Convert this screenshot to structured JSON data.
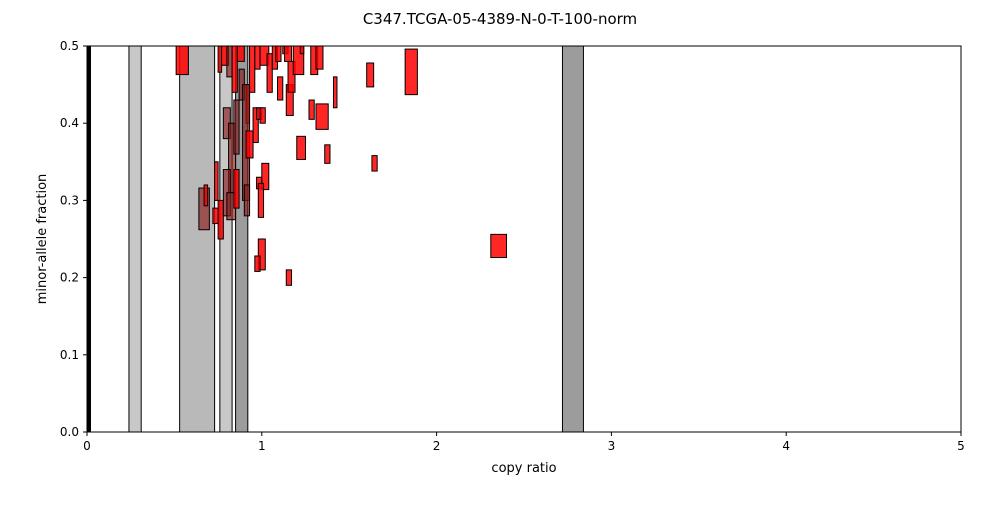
{
  "chart_data": {
    "type": "scatter",
    "title": "C347.TCGA-05-4389-N-0-T-100-norm",
    "xlabel": "copy ratio",
    "ylabel": "minor-allele fraction",
    "xlim": [
      0,
      5
    ],
    "ylim": [
      0,
      0.5
    ],
    "xticks": [
      "0",
      "1",
      "2",
      "3",
      "4",
      "5"
    ],
    "yticks": [
      "0.0",
      "0.1",
      "0.2",
      "0.3",
      "0.4",
      "0.5"
    ],
    "grid": false,
    "colors": {
      "segment": "#ff0000",
      "segment_faded": "#8b1a1a",
      "band_light": "#c8c8c8",
      "band_mid": "#b9b9b9",
      "band_dark": "#9c9c9c",
      "edge": "#000000"
    },
    "bands": [
      {
        "x0": 0.0,
        "x1": 0.02,
        "shade": "black"
      },
      {
        "x0": 0.24,
        "x1": 0.31,
        "shade": "light"
      },
      {
        "x0": 0.53,
        "x1": 0.73,
        "shade": "mid"
      },
      {
        "x0": 0.76,
        "x1": 0.83,
        "shade": "light"
      },
      {
        "x0": 0.85,
        "x1": 0.92,
        "shade": "dark"
      },
      {
        "x0": 2.72,
        "x1": 2.84,
        "shade": "dark"
      }
    ],
    "segments": [
      {
        "x0": 0.51,
        "x1": 0.58,
        "y0": 0.463,
        "y1": 0.5,
        "faded": false
      },
      {
        "x0": 0.75,
        "x1": 0.77,
        "y0": 0.466,
        "y1": 0.5,
        "faded": false
      },
      {
        "x0": 0.77,
        "x1": 0.81,
        "y0": 0.475,
        "y1": 0.5,
        "faded": false
      },
      {
        "x0": 0.8,
        "x1": 0.83,
        "y0": 0.46,
        "y1": 0.5,
        "faded": true
      },
      {
        "x0": 0.83,
        "x1": 0.86,
        "y0": 0.44,
        "y1": 0.5,
        "faded": false
      },
      {
        "x0": 0.86,
        "x1": 0.9,
        "y0": 0.48,
        "y1": 0.5,
        "faded": false
      },
      {
        "x0": 0.87,
        "x1": 0.9,
        "y0": 0.43,
        "y1": 0.47,
        "faded": true
      },
      {
        "x0": 0.91,
        "x1": 0.93,
        "y0": 0.4,
        "y1": 0.45,
        "faded": false
      },
      {
        "x0": 0.93,
        "x1": 0.96,
        "y0": 0.44,
        "y1": 0.5,
        "faded": false
      },
      {
        "x0": 0.96,
        "x1": 0.99,
        "y0": 0.47,
        "y1": 0.5,
        "faded": false
      },
      {
        "x0": 0.99,
        "x1": 1.04,
        "y0": 0.475,
        "y1": 0.5,
        "faded": false
      },
      {
        "x0": 1.03,
        "x1": 1.06,
        "y0": 0.44,
        "y1": 0.49,
        "faded": false
      },
      {
        "x0": 1.06,
        "x1": 1.09,
        "y0": 0.47,
        "y1": 0.5,
        "faded": false
      },
      {
        "x0": 1.08,
        "x1": 1.11,
        "y0": 0.48,
        "y1": 0.5,
        "faded": false
      },
      {
        "x0": 1.09,
        "x1": 1.12,
        "y0": 0.43,
        "y1": 0.46,
        "faded": false
      },
      {
        "x0": 1.12,
        "x1": 1.15,
        "y0": 0.49,
        "y1": 0.5,
        "faded": false
      },
      {
        "x0": 1.13,
        "x1": 1.17,
        "y0": 0.48,
        "y1": 0.5,
        "faded": false
      },
      {
        "x0": 1.14,
        "x1": 1.18,
        "y0": 0.41,
        "y1": 0.45,
        "faded": false
      },
      {
        "x0": 1.15,
        "x1": 1.19,
        "y0": 0.44,
        "y1": 0.48,
        "faded": false
      },
      {
        "x0": 1.18,
        "x1": 1.24,
        "y0": 0.463,
        "y1": 0.5,
        "faded": false
      },
      {
        "x0": 1.22,
        "x1": 1.24,
        "y0": 0.49,
        "y1": 0.5,
        "faded": false
      },
      {
        "x0": 1.28,
        "x1": 1.32,
        "y0": 0.463,
        "y1": 0.5,
        "faded": false
      },
      {
        "x0": 1.31,
        "x1": 1.35,
        "y0": 0.47,
        "y1": 0.5,
        "faded": false
      },
      {
        "x0": 1.27,
        "x1": 1.3,
        "y0": 0.405,
        "y1": 0.43,
        "faded": false
      },
      {
        "x0": 1.31,
        "x1": 1.38,
        "y0": 0.392,
        "y1": 0.425,
        "faded": false
      },
      {
        "x0": 1.41,
        "x1": 1.43,
        "y0": 0.42,
        "y1": 0.46,
        "faded": false
      },
      {
        "x0": 1.2,
        "x1": 1.25,
        "y0": 0.353,
        "y1": 0.383,
        "faded": false
      },
      {
        "x0": 1.36,
        "x1": 1.39,
        "y0": 0.348,
        "y1": 0.372,
        "faded": false
      },
      {
        "x0": 1.6,
        "x1": 1.64,
        "y0": 0.447,
        "y1": 0.478,
        "faded": false
      },
      {
        "x0": 1.63,
        "x1": 1.66,
        "y0": 0.338,
        "y1": 0.358,
        "faded": false
      },
      {
        "x0": 1.82,
        "x1": 1.89,
        "y0": 0.437,
        "y1": 0.496,
        "faded": false
      },
      {
        "x0": 2.31,
        "x1": 2.4,
        "y0": 0.226,
        "y1": 0.256,
        "faded": false
      },
      {
        "x0": 0.89,
        "x1": 0.93,
        "y0": 0.3,
        "y1": 0.45,
        "faded": true
      },
      {
        "x0": 0.78,
        "x1": 0.82,
        "y0": 0.38,
        "y1": 0.42,
        "faded": true
      },
      {
        "x0": 0.81,
        "x1": 0.85,
        "y0": 0.31,
        "y1": 0.4,
        "faded": true
      },
      {
        "x0": 0.84,
        "x1": 0.87,
        "y0": 0.36,
        "y1": 0.43,
        "faded": true
      },
      {
        "x0": 0.91,
        "x1": 0.95,
        "y0": 0.355,
        "y1": 0.39,
        "faded": false
      },
      {
        "x0": 0.95,
        "x1": 0.98,
        "y0": 0.375,
        "y1": 0.42,
        "faded": false
      },
      {
        "x0": 0.97,
        "x1": 1.0,
        "y0": 0.405,
        "y1": 0.42,
        "faded": false
      },
      {
        "x0": 0.99,
        "x1": 1.02,
        "y0": 0.4,
        "y1": 0.42,
        "faded": false
      },
      {
        "x0": 1.0,
        "x1": 1.04,
        "y0": 0.314,
        "y1": 0.348,
        "faded": false
      },
      {
        "x0": 0.97,
        "x1": 1.0,
        "y0": 0.315,
        "y1": 0.33,
        "faded": false
      },
      {
        "x0": 0.98,
        "x1": 1.01,
        "y0": 0.278,
        "y1": 0.322,
        "faded": false
      },
      {
        "x0": 0.73,
        "x1": 0.75,
        "y0": 0.3,
        "y1": 0.35,
        "faded": false
      },
      {
        "x0": 0.75,
        "x1": 0.78,
        "y0": 0.25,
        "y1": 0.3,
        "faded": false
      },
      {
        "x0": 0.64,
        "x1": 0.7,
        "y0": 0.262,
        "y1": 0.316,
        "faded": true
      },
      {
        "x0": 0.67,
        "x1": 0.69,
        "y0": 0.293,
        "y1": 0.32,
        "faded": false
      },
      {
        "x0": 0.72,
        "x1": 0.75,
        "y0": 0.27,
        "y1": 0.29,
        "faded": false
      },
      {
        "x0": 0.78,
        "x1": 0.82,
        "y0": 0.28,
        "y1": 0.34,
        "faded": true
      },
      {
        "x0": 0.8,
        "x1": 0.85,
        "y0": 0.275,
        "y1": 0.31,
        "faded": true
      },
      {
        "x0": 0.84,
        "x1": 0.87,
        "y0": 0.29,
        "y1": 0.34,
        "faded": false
      },
      {
        "x0": 0.9,
        "x1": 0.93,
        "y0": 0.28,
        "y1": 0.32,
        "faded": true
      },
      {
        "x0": 0.98,
        "x1": 1.02,
        "y0": 0.21,
        "y1": 0.25,
        "faded": false
      },
      {
        "x0": 0.96,
        "x1": 0.99,
        "y0": 0.208,
        "y1": 0.228,
        "faded": false
      },
      {
        "x0": 1.14,
        "x1": 1.17,
        "y0": 0.19,
        "y1": 0.21,
        "faded": false
      }
    ]
  }
}
